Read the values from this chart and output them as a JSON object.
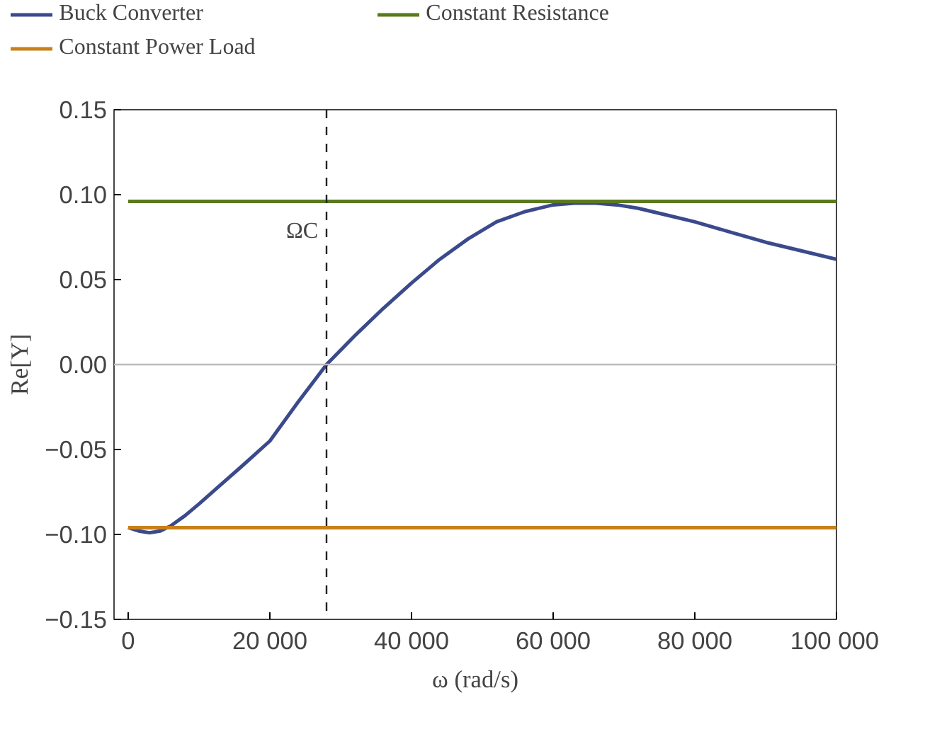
{
  "chart_data": {
    "type": "line",
    "xlabel": "ω (rad/s)",
    "ylabel": "Re[Y]",
    "xlim": [
      -2000,
      100000
    ],
    "ylim": [
      -0.15,
      0.15
    ],
    "xticks": [
      0,
      {
        "value": 20000,
        "label": "20 000"
      },
      {
        "value": 40000,
        "label": "40 000"
      },
      {
        "value": 60000,
        "label": "60 000"
      },
      {
        "value": 80000,
        "label": "80 000"
      },
      {
        "value": 100000,
        "label": "100 000"
      }
    ],
    "yticks": [
      {
        "value": -0.15,
        "label": "−0.15"
      },
      {
        "value": -0.1,
        "label": "−0.10"
      },
      {
        "value": -0.05,
        "label": "−0.05"
      },
      {
        "value": 0,
        "label": "0.00"
      },
      {
        "value": 0.05,
        "label": "0.05"
      },
      {
        "value": 0.1,
        "label": "0.10"
      },
      {
        "value": 0.15,
        "label": "0.15"
      }
    ],
    "grid": false,
    "legend": "top",
    "marker": "none",
    "line_style": "solid",
    "series": [
      {
        "name": "Buck Converter",
        "color": "#3b4a8c",
        "x": [
          0,
          1500,
          3000,
          4500,
          6000,
          8000,
          10000,
          13000,
          16000,
          20000,
          24000,
          28000,
          32000,
          36000,
          40000,
          44000,
          48000,
          52000,
          56000,
          60000,
          63000,
          66000,
          69000,
          72000,
          76000,
          80000,
          85000,
          90000,
          95000,
          100000
        ],
        "values": [
          -0.096,
          -0.098,
          -0.099,
          -0.098,
          -0.095,
          -0.089,
          -0.082,
          -0.071,
          -0.06,
          -0.045,
          -0.022,
          0.0,
          0.017,
          0.033,
          0.048,
          0.062,
          0.074,
          0.084,
          0.09,
          0.094,
          0.095,
          0.095,
          0.094,
          0.092,
          0.088,
          0.084,
          0.078,
          0.072,
          0.067,
          0.062
        ]
      },
      {
        "name": "Constant Resistance",
        "color": "#5a7a1e",
        "x": [
          0,
          100000
        ],
        "values": [
          0.096,
          0.096
        ]
      },
      {
        "name": "Constant Power Load",
        "color": "#c8801a",
        "x": [
          0,
          100000
        ],
        "values": [
          -0.096,
          -0.096
        ]
      }
    ],
    "ref_lines": [
      {
        "axis": "x",
        "value": 28000,
        "label": "ΩC",
        "color": "#222222",
        "line_style": "dashed"
      },
      {
        "axis": "y",
        "value": 0,
        "color": "#bbbbbb",
        "line_style": "solid"
      }
    ]
  }
}
